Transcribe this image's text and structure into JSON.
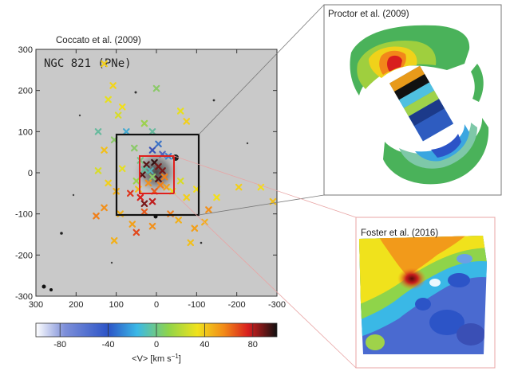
{
  "chart_data": [
    {
      "type": "scatter",
      "title": "Coccato et al. (2009)",
      "annotation": "NGC 821 (PNe)",
      "xlim": [
        300,
        -300
      ],
      "ylim": [
        -300,
        300
      ],
      "xticks": [
        "300",
        "200",
        "100",
        "0",
        "-100",
        "-200",
        "-300"
      ],
      "yticks": [
        "300",
        "200",
        "100",
        "0",
        "-100",
        "-200",
        "-300"
      ],
      "grid": false,
      "colorbar": {
        "label": "<V> [km s",
        "label_sup": "−1",
        "label_end": "]",
        "range": [
          -100,
          100
        ],
        "ticks": [
          "-80",
          "-40",
          "0",
          "40",
          "80"
        ],
        "colors": [
          "#ffffff",
          "#3a4fb5",
          "#3aa6e0",
          "#9fd24a",
          "#f2e11a",
          "#f2871a",
          "#d81e1e",
          "#111111"
        ]
      },
      "points": [
        {
          "x": 130,
          "y": 265,
          "v": 20
        },
        {
          "x": 108,
          "y": 212,
          "v": 18
        },
        {
          "x": 0,
          "y": 205,
          "v": -20
        },
        {
          "x": 120,
          "y": 178,
          "v": 10
        },
        {
          "x": 85,
          "y": 160,
          "v": 15
        },
        {
          "x": 95,
          "y": 140,
          "v": 5
        },
        {
          "x": -60,
          "y": 150,
          "v": 10
        },
        {
          "x": -75,
          "y": 125,
          "v": 20
        },
        {
          "x": 30,
          "y": 120,
          "v": -15
        },
        {
          "x": 145,
          "y": 100,
          "v": -30
        },
        {
          "x": 75,
          "y": 100,
          "v": -40
        },
        {
          "x": 10,
          "y": 100,
          "v": -30
        },
        {
          "x": 105,
          "y": 80,
          "v": -20
        },
        {
          "x": 130,
          "y": 55,
          "v": 25
        },
        {
          "x": -5,
          "y": 70,
          "v": -60
        },
        {
          "x": 55,
          "y": 60,
          "v": -20
        },
        {
          "x": 10,
          "y": 55,
          "v": -70
        },
        {
          "x": -15,
          "y": 45,
          "v": -75
        },
        {
          "x": -30,
          "y": 40,
          "v": -55
        },
        {
          "x": 40,
          "y": 30,
          "v": -25
        },
        {
          "x": 25,
          "y": 20,
          "v": 90
        },
        {
          "x": 5,
          "y": 25,
          "v": 95
        },
        {
          "x": -5,
          "y": 15,
          "v": 85
        },
        {
          "x": 30,
          "y": 8,
          "v": -30
        },
        {
          "x": 15,
          "y": 5,
          "v": -35
        },
        {
          "x": -15,
          "y": 5,
          "v": 85
        },
        {
          "x": 35,
          "y": -5,
          "v": 90
        },
        {
          "x": 10,
          "y": -10,
          "v": -20
        },
        {
          "x": -5,
          "y": -15,
          "v": 90
        },
        {
          "x": -20,
          "y": -10,
          "v": 45
        },
        {
          "x": 50,
          "y": -20,
          "v": -15
        },
        {
          "x": 20,
          "y": -25,
          "v": 40
        },
        {
          "x": -10,
          "y": -30,
          "v": 45
        },
        {
          "x": -25,
          "y": -35,
          "v": 35
        },
        {
          "x": 45,
          "y": -40,
          "v": 25
        },
        {
          "x": 5,
          "y": -45,
          "v": 55
        },
        {
          "x": -40,
          "y": -45,
          "v": 10
        },
        {
          "x": 65,
          "y": -50,
          "v": 65
        },
        {
          "x": 40,
          "y": -60,
          "v": 70
        },
        {
          "x": 30,
          "y": -75,
          "v": 85
        },
        {
          "x": 10,
          "y": -70,
          "v": 75
        },
        {
          "x": 100,
          "y": -45,
          "v": 30
        },
        {
          "x": 120,
          "y": -25,
          "v": 20
        },
        {
          "x": 85,
          "y": 10,
          "v": 10
        },
        {
          "x": 145,
          "y": 5,
          "v": 5
        },
        {
          "x": -60,
          "y": -20,
          "v": 5
        },
        {
          "x": -75,
          "y": -60,
          "v": 20
        },
        {
          "x": -100,
          "y": -40,
          "v": 15
        },
        {
          "x": -120,
          "y": -120,
          "v": 30
        },
        {
          "x": -150,
          "y": -60,
          "v": 15
        },
        {
          "x": -130,
          "y": -90,
          "v": 40
        },
        {
          "x": -205,
          "y": -35,
          "v": 20
        },
        {
          "x": -260,
          "y": -35,
          "v": 15
        },
        {
          "x": -290,
          "y": -70,
          "v": 25
        },
        {
          "x": 130,
          "y": -85,
          "v": 40
        },
        {
          "x": 150,
          "y": -105,
          "v": 45
        },
        {
          "x": 90,
          "y": -100,
          "v": 30
        },
        {
          "x": 60,
          "y": -125,
          "v": 35
        },
        {
          "x": 30,
          "y": -95,
          "v": 55
        },
        {
          "x": -35,
          "y": -100,
          "v": 45
        },
        {
          "x": -55,
          "y": -115,
          "v": 30
        },
        {
          "x": -95,
          "y": -135,
          "v": 35
        },
        {
          "x": 50,
          "y": -145,
          "v": 60
        },
        {
          "x": 10,
          "y": -130,
          "v": 40
        },
        {
          "x": 105,
          "y": -165,
          "v": 30
        },
        {
          "x": -85,
          "y": -170,
          "v": 25
        }
      ]
    },
    {
      "type": "heatmap",
      "title": "Proctor et al. (2009)"
    },
    {
      "type": "heatmap",
      "title": "Foster et al. (2016)"
    }
  ]
}
